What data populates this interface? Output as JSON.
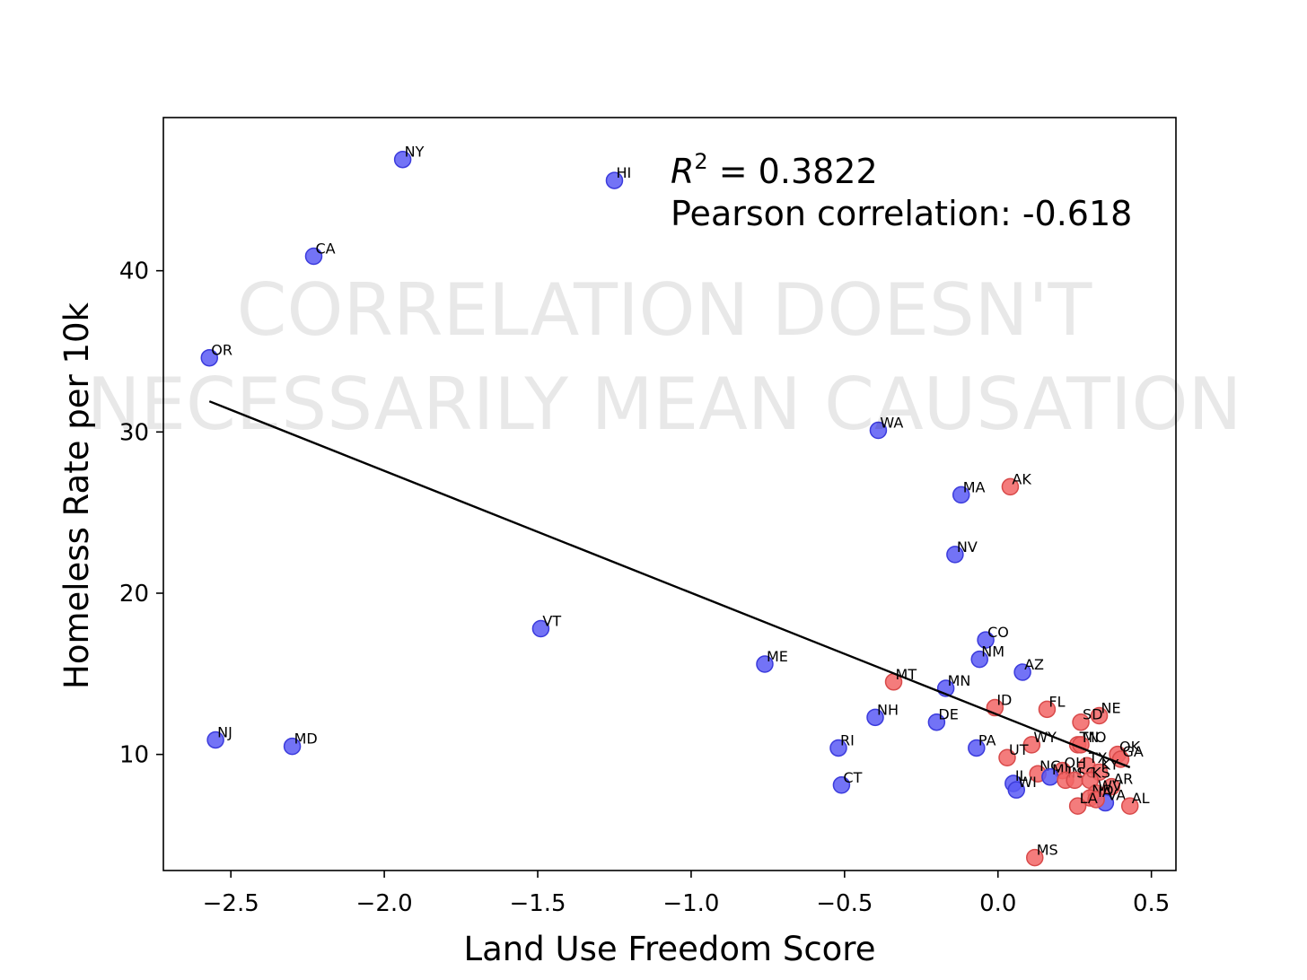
{
  "chart_data": {
    "type": "scatter",
    "xlabel": "Land Use Freedom Score",
    "ylabel": "Homeless Rate per 10k",
    "xlim": [
      -2.72,
      0.58
    ],
    "ylim": [
      2.8,
      49.5
    ],
    "xticks": [
      -2.5,
      -2.0,
      -1.5,
      -1.0,
      -0.5,
      0.0,
      0.5
    ],
    "xtick_labels": [
      "−2.5",
      "−2.0",
      "−1.5",
      "−1.0",
      "−0.5",
      "0.0",
      "0.5"
    ],
    "yticks": [
      10,
      20,
      30,
      40
    ],
    "ytick_labels": [
      "10",
      "20",
      "30",
      "40"
    ],
    "grid": false,
    "colors": {
      "blue": "#5a5af5",
      "red": "#f26565",
      "blue_edge": "#3b3bdc",
      "red_edge": "#d84a4a"
    },
    "annotation": {
      "r2_prefix": "R",
      "r2_sup": "2",
      "r2_value": " = 0.3822",
      "pearson": "Pearson correlation: -0.618"
    },
    "watermark": [
      "CORRELATION DOESN'T",
      "NECESSARILY MEAN CAUSATION"
    ],
    "regression_line": {
      "x": [
        -2.57,
        0.43
      ],
      "y": [
        31.9,
        9.2
      ]
    },
    "points": [
      {
        "label": "NY",
        "x": -1.94,
        "y": 46.9,
        "color": "blue"
      },
      {
        "label": "HI",
        "x": -1.25,
        "y": 45.6,
        "color": "blue"
      },
      {
        "label": "CA",
        "x": -2.23,
        "y": 40.9,
        "color": "blue"
      },
      {
        "label": "OR",
        "x": -2.57,
        "y": 34.6,
        "color": "blue"
      },
      {
        "label": "WA",
        "x": -0.39,
        "y": 30.1,
        "color": "blue"
      },
      {
        "label": "MA",
        "x": -0.12,
        "y": 26.1,
        "color": "blue"
      },
      {
        "label": "AK",
        "x": 0.04,
        "y": 26.6,
        "color": "red"
      },
      {
        "label": "NV",
        "x": -0.14,
        "y": 22.4,
        "color": "blue"
      },
      {
        "label": "VT",
        "x": -1.49,
        "y": 17.8,
        "color": "blue"
      },
      {
        "label": "CO",
        "x": -0.04,
        "y": 17.1,
        "color": "blue"
      },
      {
        "label": "NM",
        "x": -0.06,
        "y": 15.9,
        "color": "blue"
      },
      {
        "label": "ME",
        "x": -0.76,
        "y": 15.6,
        "color": "blue"
      },
      {
        "label": "AZ",
        "x": 0.08,
        "y": 15.1,
        "color": "blue"
      },
      {
        "label": "MT",
        "x": -0.34,
        "y": 14.5,
        "color": "red"
      },
      {
        "label": "MN",
        "x": -0.17,
        "y": 14.1,
        "color": "blue"
      },
      {
        "label": "ID",
        "x": -0.01,
        "y": 12.9,
        "color": "red"
      },
      {
        "label": "FL",
        "x": 0.16,
        "y": 12.8,
        "color": "red"
      },
      {
        "label": "NH",
        "x": -0.4,
        "y": 12.3,
        "color": "blue"
      },
      {
        "label": "NE",
        "x": 0.33,
        "y": 12.4,
        "color": "red"
      },
      {
        "label": "SD",
        "x": 0.27,
        "y": 12.0,
        "color": "red"
      },
      {
        "label": "DE",
        "x": -0.2,
        "y": 12.0,
        "color": "blue"
      },
      {
        "label": "NJ",
        "x": -2.55,
        "y": 10.9,
        "color": "blue"
      },
      {
        "label": "MD",
        "x": -2.3,
        "y": 10.5,
        "color": "blue"
      },
      {
        "label": "WY",
        "x": 0.11,
        "y": 10.6,
        "color": "red"
      },
      {
        "label": "TN",
        "x": 0.26,
        "y": 10.6,
        "color": "red"
      },
      {
        "label": "MO",
        "x": 0.27,
        "y": 10.6,
        "color": "red"
      },
      {
        "label": "RI",
        "x": -0.52,
        "y": 10.4,
        "color": "blue"
      },
      {
        "label": "PA",
        "x": -0.07,
        "y": 10.4,
        "color": "blue"
      },
      {
        "label": "OK",
        "x": 0.39,
        "y": 10.0,
        "color": "red"
      },
      {
        "label": "GA",
        "x": 0.4,
        "y": 9.7,
        "color": "red"
      },
      {
        "label": "UT",
        "x": 0.03,
        "y": 9.8,
        "color": "red"
      },
      {
        "label": "TX",
        "x": 0.29,
        "y": 9.3,
        "color": "red"
      },
      {
        "label": "OH",
        "x": 0.21,
        "y": 9.0,
        "color": "red"
      },
      {
        "label": "KY",
        "x": 0.33,
        "y": 8.9,
        "color": "red"
      },
      {
        "label": "NC",
        "x": 0.13,
        "y": 8.8,
        "color": "red"
      },
      {
        "label": "MI",
        "x": 0.17,
        "y": 8.6,
        "color": "blue"
      },
      {
        "label": "IN",
        "x": 0.22,
        "y": 8.4,
        "color": "red"
      },
      {
        "label": "SC",
        "x": 0.25,
        "y": 8.4,
        "color": "red"
      },
      {
        "label": "KS",
        "x": 0.3,
        "y": 8.4,
        "color": "red"
      },
      {
        "label": "IL",
        "x": 0.05,
        "y": 8.2,
        "color": "blue"
      },
      {
        "label": "CT",
        "x": -0.51,
        "y": 8.1,
        "color": "blue"
      },
      {
        "label": "AR",
        "x": 0.37,
        "y": 8.0,
        "color": "red"
      },
      {
        "label": "WI",
        "x": 0.06,
        "y": 7.8,
        "color": "blue"
      },
      {
        "label": "WV",
        "x": 0.32,
        "y": 7.6,
        "color": "red"
      },
      {
        "label": "ND",
        "x": 0.3,
        "y": 7.3,
        "color": "red"
      },
      {
        "label": "VA",
        "x": 0.35,
        "y": 7.0,
        "color": "blue"
      },
      {
        "label": "IA",
        "x": 0.32,
        "y": 7.2,
        "color": "red"
      },
      {
        "label": "LA",
        "x": 0.26,
        "y": 6.8,
        "color": "red"
      },
      {
        "label": "AL",
        "x": 0.43,
        "y": 6.8,
        "color": "red"
      },
      {
        "label": "MS",
        "x": 0.12,
        "y": 3.6,
        "color": "red"
      }
    ]
  }
}
